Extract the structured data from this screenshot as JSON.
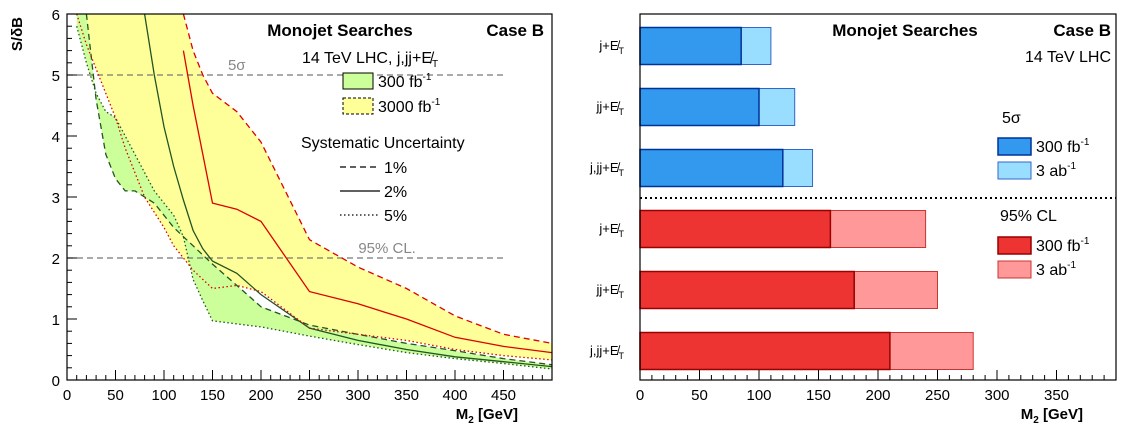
{
  "chart_data": [
    {
      "type": "line",
      "title": "Monojet Searches",
      "case_label": "Case B",
      "subtitle": "14 TeV LHC, j,jj+E̸",
      "subtitle_sub": "T",
      "xlabel": "M",
      "xlabel_sub": "2",
      "xlabel_unit": " [GeV]",
      "ylabel": "S/δB",
      "xlim": [
        0,
        500
      ],
      "ylim": [
        0,
        6
      ],
      "xticks": [
        0,
        50,
        100,
        150,
        200,
        250,
        300,
        350,
        400,
        450
      ],
      "yticks": [
        0,
        1,
        2,
        3,
        4,
        5,
        6
      ],
      "grid": false,
      "legend_bands": [
        {
          "label": "300 fb",
          "sup": "-1",
          "color": "#ccff99"
        },
        {
          "label": "3000 fb",
          "sup": "-1",
          "color": "#ffff99"
        }
      ],
      "syst_title": "Systematic Uncertainty",
      "syst_legend": [
        {
          "label": "1%",
          "dash": "dashed"
        },
        {
          "label": "2%",
          "dash": "solid"
        },
        {
          "label": "5%",
          "dash": "dotted"
        }
      ],
      "reference_lines": [
        {
          "y": 5,
          "label": "5σ"
        },
        {
          "y": 2,
          "label": "95% CL."
        }
      ],
      "x": [
        10,
        20,
        30,
        40,
        50,
        60,
        70,
        80,
        90,
        100,
        110,
        120,
        130,
        140,
        150,
        175,
        200,
        250,
        300,
        350,
        400,
        450,
        500
      ],
      "series": [
        {
          "lumi": "300 fb-1",
          "syst": "1%",
          "values": [
            null,
            6.0,
            4.6,
            3.7,
            3.3,
            3.1,
            3.1,
            3.0,
            2.9,
            2.7,
            2.5,
            2.35,
            2.2,
            2.05,
            1.9,
            1.55,
            1.2,
            0.9,
            0.75,
            0.6,
            0.48,
            0.35,
            0.25
          ]
        },
        {
          "lumi": "300 fb-1",
          "syst": "2%",
          "values": [
            null,
            null,
            null,
            null,
            null,
            null,
            null,
            6.0,
            5.0,
            4.15,
            3.5,
            2.95,
            2.45,
            2.15,
            1.95,
            1.75,
            1.4,
            0.85,
            0.65,
            0.5,
            0.38,
            0.3,
            0.22
          ]
        },
        {
          "lumi": "300 fb-1",
          "syst": "5%",
          "values": [
            5.8,
            5.2,
            4.7,
            4.4,
            4.3,
            4.0,
            3.7,
            3.4,
            3.1,
            2.9,
            2.7,
            2.35,
            1.65,
            1.3,
            0.97,
            0.92,
            0.87,
            0.72,
            0.58,
            0.45,
            0.35,
            0.27,
            0.18
          ]
        },
        {
          "lumi": "3000 fb-1",
          "syst": "1%",
          "values": [
            null,
            null,
            null,
            null,
            null,
            null,
            null,
            null,
            null,
            null,
            null,
            6.0,
            5.4,
            5.0,
            4.7,
            4.4,
            3.9,
            2.3,
            1.85,
            1.5,
            1.05,
            0.75,
            0.6
          ]
        },
        {
          "lumi": "3000 fb-1",
          "syst": "2%",
          "values": [
            null,
            null,
            null,
            null,
            null,
            null,
            null,
            null,
            null,
            null,
            null,
            5.4,
            4.5,
            3.7,
            2.9,
            2.8,
            2.6,
            1.45,
            1.25,
            1.0,
            0.7,
            0.55,
            0.45
          ]
        },
        {
          "lumi": "3000 fb-1",
          "syst": "5%",
          "values": [
            6.0,
            5.5,
            5.1,
            4.7,
            4.3,
            3.8,
            3.4,
            3.0,
            2.75,
            2.5,
            2.2,
            2.0,
            1.8,
            1.65,
            1.5,
            1.55,
            1.45,
            0.85,
            0.75,
            0.65,
            0.5,
            0.4,
            0.33
          ]
        }
      ]
    },
    {
      "type": "bar",
      "orientation": "horizontal",
      "stacked": true,
      "title": "Monojet Searches",
      "case_label": "Case B",
      "subtitle": "14 TeV LHC",
      "xlabel": "M",
      "xlabel_sub": "2",
      "xlabel_unit": " [GeV]",
      "xlim": [
        0,
        400
      ],
      "xticks": [
        0,
        50,
        100,
        150,
        200,
        250,
        300,
        350
      ],
      "grid": false,
      "groups": [
        {
          "name": "5σ",
          "legend": [
            {
              "label": "300 fb",
              "sup": "-1",
              "color": "#3399ee"
            },
            {
              "label": "3 ab",
              "sup": "-1",
              "color": "#99ddff"
            }
          ],
          "categories": [
            {
              "base": "j+E̸",
              "sub": "T"
            },
            {
              "base": "jj+E̸",
              "sub": "T"
            },
            {
              "base": "j,jj+E̸",
              "sub": "T"
            }
          ],
          "values_300fb": [
            85,
            100,
            120
          ],
          "values_3ab": [
            110,
            130,
            145
          ]
        },
        {
          "name": "95% CL",
          "legend": [
            {
              "label": "300 fb",
              "sup": "-1",
              "color": "#ee3333"
            },
            {
              "label": "3 ab",
              "sup": "-1",
              "color": "#ff9999"
            }
          ],
          "categories": [
            {
              "base": "j+E̸",
              "sub": "T"
            },
            {
              "base": "jj+E̸",
              "sub": "T"
            },
            {
              "base": "j,jj+E̸",
              "sub": "T"
            }
          ],
          "values_300fb": [
            160,
            180,
            210
          ],
          "values_3ab": [
            240,
            250,
            280
          ]
        }
      ]
    }
  ]
}
